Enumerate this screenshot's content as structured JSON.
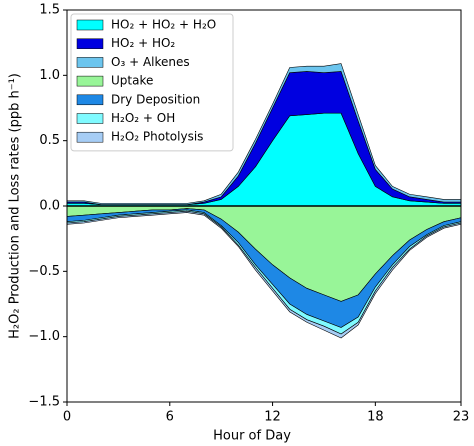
{
  "chart_data": {
    "type": "stacked_area",
    "ylabel": "H₂O₂ Production and Loss rates (ppb h⁻¹)",
    "xlabel": "Hour of Day",
    "x": [
      0,
      1,
      2,
      3,
      4,
      5,
      6,
      7,
      8,
      9,
      10,
      11,
      12,
      13,
      14,
      15,
      16,
      17,
      18,
      19,
      20,
      21,
      22,
      23
    ],
    "xlim": [
      0,
      23
    ],
    "xticks": [
      0,
      6,
      12,
      18,
      23
    ],
    "ylim": [
      -1.5,
      1.5
    ],
    "yticks": [
      {
        "value": -1.5,
        "label": "−1.5"
      },
      {
        "value": -1.0,
        "label": "−1.0"
      },
      {
        "value": -0.5,
        "label": "−0.5"
      },
      {
        "value": 0.0,
        "label": "0.0"
      },
      0.5,
      {
        "value": 1.0,
        "label": "1.0"
      },
      1.5
    ],
    "legend": "upper left",
    "series": [
      {
        "name": "HO₂ + HO₂ + H₂O",
        "color": "#00ffff",
        "values": [
          0.02,
          0.02,
          0.01,
          0.01,
          0.01,
          0.01,
          0.01,
          0.01,
          0.02,
          0.05,
          0.15,
          0.3,
          0.5,
          0.69,
          0.7,
          0.71,
          0.71,
          0.4,
          0.15,
          0.07,
          0.04,
          0.03,
          0.02,
          0.02
        ]
      },
      {
        "name": "HO₂ + HO₂",
        "color": "#0000e0",
        "values": [
          0.01,
          0.01,
          0,
          0,
          0,
          0,
          0,
          0,
          0.01,
          0.02,
          0.08,
          0.18,
          0.25,
          0.33,
          0.33,
          0.31,
          0.32,
          0.25,
          0.13,
          0.06,
          0.03,
          0.02,
          0.01,
          0.01
        ]
      },
      {
        "name": "O₃ + Alkenes",
        "color": "#6cc5ee",
        "values": [
          0.01,
          0.01,
          0.01,
          0.01,
          0.01,
          0.01,
          0.01,
          0.01,
          0.01,
          0.02,
          0.03,
          0.03,
          0.03,
          0.04,
          0.04,
          0.05,
          0.06,
          0.05,
          0.03,
          0.02,
          0.02,
          0.02,
          0.02,
          0.02
        ]
      },
      {
        "name": "Uptake",
        "color": "#98f598",
        "values": [
          -0.08,
          -0.07,
          -0.06,
          -0.05,
          -0.04,
          -0.03,
          -0.03,
          -0.02,
          -0.03,
          -0.1,
          -0.2,
          -0.33,
          -0.45,
          -0.55,
          -0.63,
          -0.68,
          -0.73,
          -0.68,
          -0.52,
          -0.38,
          -0.26,
          -0.18,
          -0.12,
          -0.09
        ]
      },
      {
        "name": "Dry Deposition",
        "color": "#1e88e5",
        "values": [
          -0.04,
          -0.04,
          -0.03,
          -0.02,
          -0.02,
          -0.02,
          -0.01,
          -0.01,
          -0.02,
          -0.05,
          -0.08,
          -0.12,
          -0.15,
          -0.2,
          -0.2,
          -0.2,
          -0.2,
          -0.17,
          -0.1,
          -0.07,
          -0.05,
          -0.04,
          -0.03,
          -0.03
        ]
      },
      {
        "name": "H₂O₂ + OH",
        "color": "#7ffaff",
        "values": [
          -0.01,
          -0.01,
          -0.01,
          -0.01,
          -0.01,
          -0.01,
          -0.01,
          -0.01,
          -0.01,
          -0.01,
          -0.02,
          -0.02,
          -0.03,
          -0.04,
          -0.04,
          -0.04,
          -0.05,
          -0.04,
          -0.03,
          -0.02,
          -0.02,
          -0.01,
          -0.01,
          -0.01
        ]
      },
      {
        "name": "H₂O₂ Photolysis",
        "color": "#a6cdf5",
        "values": [
          -0.01,
          -0.01,
          -0.01,
          -0.01,
          -0.01,
          -0.01,
          -0.01,
          -0.01,
          -0.01,
          -0.01,
          -0.01,
          -0.02,
          -0.02,
          -0.02,
          -0.02,
          -0.03,
          -0.03,
          -0.02,
          -0.02,
          -0.02,
          -0.01,
          -0.01,
          -0.01,
          -0.01
        ]
      }
    ]
  }
}
